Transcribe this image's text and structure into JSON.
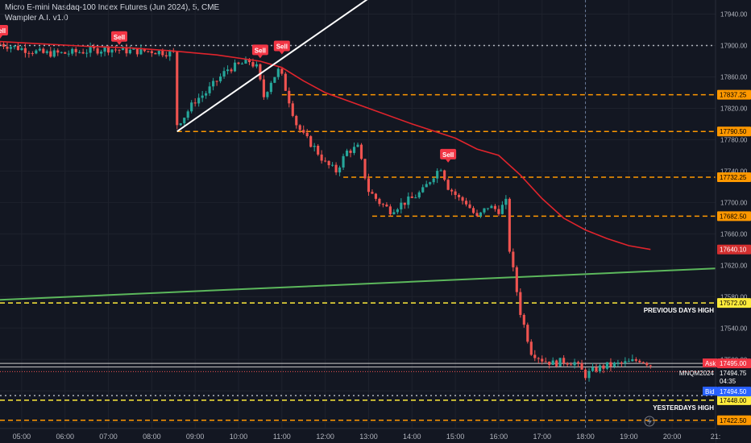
{
  "header": {
    "symbol_line": "Micro E-mini Nasdaq-100 Index Futures (Jun 2024), 5, CME",
    "indicator_line": "Wampler A.I. v1.0"
  },
  "colors": {
    "background": "#131722",
    "up": "#26a69a",
    "down": "#ef5350",
    "ma": "#e0242c",
    "trend": "#ffffff",
    "green_line": "#5cb85c",
    "orange": "#ff9800",
    "yellow": "#ffeb3b",
    "axis_text": "#b2b5be"
  },
  "chart_data": {
    "type": "candlestick",
    "timeframe": "5",
    "x_ticks": [
      "05:00",
      "06:00",
      "07:00",
      "08:00",
      "09:00",
      "10:00",
      "11:00",
      "12:00",
      "13:00",
      "14:00",
      "15:00",
      "16:00",
      "17:00",
      "18:00",
      "19:00",
      "20:00",
      "21:"
    ],
    "y_ticks": [
      17420,
      17460,
      17500,
      17540,
      17580,
      17620,
      17660,
      17700,
      17740,
      17780,
      17820,
      17860,
      17900,
      17940
    ],
    "ylim": [
      17412,
      17958
    ],
    "xlim": [
      "04:30",
      "21:00"
    ],
    "candles_close_path": [
      [
        "04:30",
        17902
      ],
      [
        "05:00",
        17896
      ],
      [
        "05:30",
        17890
      ],
      [
        "06:00",
        17890
      ],
      [
        "06:30",
        17893
      ],
      [
        "07:00",
        17896
      ],
      [
        "07:30",
        17893
      ],
      [
        "08:00",
        17893
      ],
      [
        "08:30",
        17890
      ],
      [
        "08:35",
        17800
      ],
      [
        "08:45",
        17810
      ],
      [
        "09:00",
        17830
      ],
      [
        "09:15",
        17840
      ],
      [
        "09:30",
        17855
      ],
      [
        "09:45",
        17870
      ],
      [
        "10:00",
        17875
      ],
      [
        "10:15",
        17880
      ],
      [
        "10:25",
        17872
      ],
      [
        "10:35",
        17835
      ],
      [
        "10:45",
        17855
      ],
      [
        "10:55",
        17868
      ],
      [
        "11:00",
        17860
      ],
      [
        "11:10",
        17830
      ],
      [
        "11:20",
        17800
      ],
      [
        "11:30",
        17785
      ],
      [
        "11:45",
        17770
      ],
      [
        "12:00",
        17750
      ],
      [
        "12:15",
        17740
      ],
      [
        "12:30",
        17765
      ],
      [
        "12:45",
        17770
      ],
      [
        "13:00",
        17715
      ],
      [
        "13:15",
        17700
      ],
      [
        "13:30",
        17690
      ],
      [
        "13:45",
        17698
      ],
      [
        "14:00",
        17705
      ],
      [
        "14:15",
        17715
      ],
      [
        "14:30",
        17735
      ],
      [
        "14:40",
        17745
      ],
      [
        "14:50",
        17720
      ],
      [
        "15:05",
        17705
      ],
      [
        "15:15",
        17700
      ],
      [
        "15:30",
        17680
      ],
      [
        "15:45",
        17695
      ],
      [
        "16:00",
        17690
      ],
      [
        "16:10",
        17700
      ],
      [
        "16:15",
        17640
      ],
      [
        "16:30",
        17560
      ],
      [
        "16:45",
        17510
      ],
      [
        "17:00",
        17500
      ],
      [
        "17:15",
        17495
      ],
      [
        "17:30",
        17498
      ],
      [
        "17:45",
        17496
      ],
      [
        "18:00",
        17480
      ],
      [
        "18:15",
        17488
      ],
      [
        "18:30",
        17492
      ],
      [
        "18:45",
        17494
      ],
      [
        "19:00",
        17496
      ],
      [
        "19:15",
        17500
      ],
      [
        "19:30",
        17494
      ]
    ],
    "moving_average": [
      [
        "04:30",
        17905
      ],
      [
        "05:30",
        17902
      ],
      [
        "06:30",
        17899
      ],
      [
        "07:30",
        17897
      ],
      [
        "08:30",
        17893
      ],
      [
        "09:30",
        17888
      ],
      [
        "10:30",
        17880
      ],
      [
        "11:00",
        17872
      ],
      [
        "11:30",
        17855
      ],
      [
        "12:00",
        17840
      ],
      [
        "13:00",
        17820
      ],
      [
        "14:00",
        17800
      ],
      [
        "15:00",
        17782
      ],
      [
        "15:30",
        17768
      ],
      [
        "16:00",
        17760
      ],
      [
        "16:30",
        17735
      ],
      [
        "17:00",
        17705
      ],
      [
        "17:30",
        17680
      ],
      [
        "18:00",
        17665
      ],
      [
        "18:30",
        17654
      ],
      [
        "19:00",
        17645
      ],
      [
        "19:30",
        17640.1
      ]
    ],
    "trend_line": [
      [
        "08:35",
        17790.5
      ],
      [
        "13:00",
        17960
      ]
    ],
    "green_line": [
      [
        "04:30",
        17576
      ],
      [
        "21:00",
        17616
      ]
    ],
    "signals": [
      {
        "label": "Sell",
        "time": "04:30",
        "price": 17918
      },
      {
        "label": "Sell",
        "time": "07:15",
        "price": 17910
      },
      {
        "label": "Sell",
        "time": "10:30",
        "price": 17893
      },
      {
        "label": "Sell",
        "time": "11:00",
        "price": 17898
      },
      {
        "label": "Sell",
        "time": "14:50",
        "price": 17760
      }
    ],
    "horizontal_levels": [
      {
        "price": 17837.25,
        "label": "17837.25",
        "color": "#ff9800",
        "style": "dashed",
        "from": "11:00"
      },
      {
        "price": 17790.5,
        "label": "17790.50",
        "color": "#ff9800",
        "style": "dashed",
        "from": "08:35"
      },
      {
        "price": 17732.25,
        "label": "17732.25",
        "color": "#ff9800",
        "style": "dashed",
        "from": "12:25"
      },
      {
        "price": 17682.5,
        "label": "17682.50",
        "color": "#ff9800",
        "style": "dashed",
        "from": "13:05"
      },
      {
        "price": 17572.0,
        "label": "17572.00",
        "color": "#ffeb3b",
        "style": "dashed",
        "from": "04:30",
        "text": "PREVIOUS DAYS HIGH"
      },
      {
        "price": 17448.0,
        "label": "17448.00",
        "color": "#ffeb3b",
        "style": "dashed",
        "from": "04:30",
        "text": "YESTERDAYS HIGH"
      },
      {
        "price": 17422.5,
        "label": "17422.50",
        "color": "#ff9800",
        "style": "dashed",
        "from": "04:30"
      },
      {
        "price": 17900.0,
        "label": "",
        "color": "#b2b5be",
        "style": "dotted",
        "from": "04:30"
      },
      {
        "price": 17454.0,
        "label": "",
        "color": "#b2b5be",
        "style": "dotted",
        "from": "04:30"
      }
    ],
    "price_tags": {
      "ma_value": "17640.10",
      "ask_label": "Ask",
      "ask_value": "17495.00",
      "symbol": "MNQM2024",
      "last_value": "17494.75",
      "countdown": "04:35",
      "bid_label": "Bid",
      "bid_value": "17494.50"
    },
    "crosshair_time": "18:00"
  }
}
